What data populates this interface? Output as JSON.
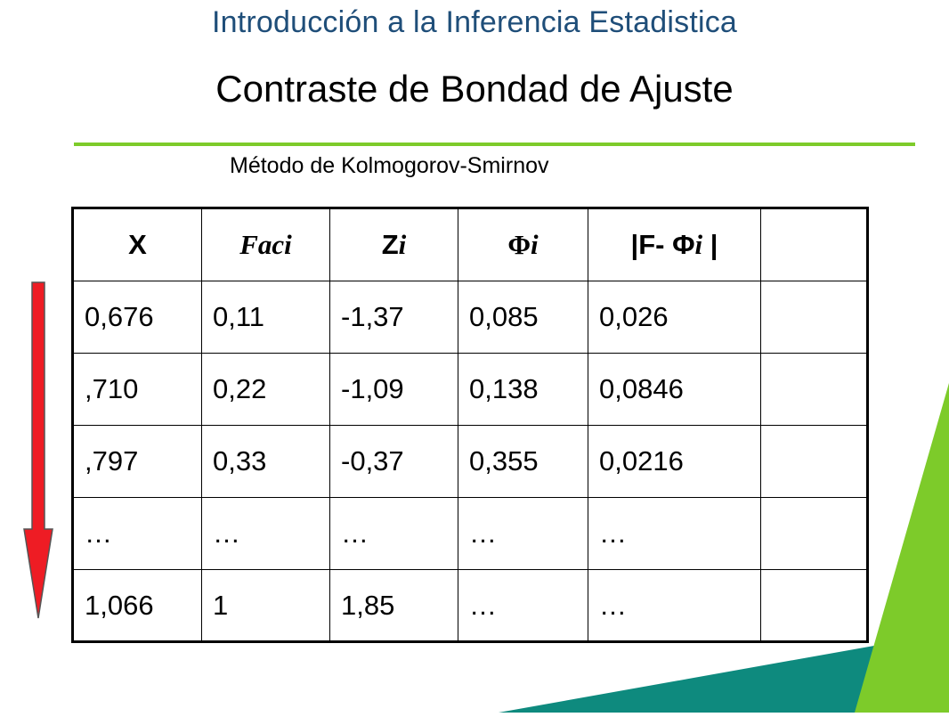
{
  "header": {
    "course_title": "Introducción a la Inferencia Estadistica",
    "slide_title": "Contraste de Bondad de Ajuste",
    "method": "Método de Kolmogorov-Smirnov"
  },
  "table": {
    "headers": [
      {
        "main": "X",
        "sub": ""
      },
      {
        "main": "Faci",
        "sub": ""
      },
      {
        "main": "Z",
        "sub": "i"
      },
      {
        "main": "Φ",
        "sub": "i"
      },
      {
        "main": "|F- Φ",
        "sub": "i",
        "tail": " |"
      },
      {
        "main": "",
        "sub": ""
      }
    ],
    "rows": [
      [
        "0,676",
        "0,11",
        "-1,37",
        "0,085",
        "0,026",
        ""
      ],
      [
        ",710",
        "0,22",
        "-1,09",
        "0,138",
        "0,0846",
        ""
      ],
      [
        ",797",
        "0,33",
        "-0,37",
        "0,355",
        "0,0216",
        ""
      ],
      [
        "…",
        "…",
        "…",
        "…",
        "…",
        ""
      ],
      [
        "1,066",
        "1",
        "1,85",
        "…",
        "…",
        ""
      ]
    ]
  },
  "colors": {
    "title_blue": "#1f4e79",
    "accent_green": "#7dcb2a",
    "arrow_red": "#ee1c24",
    "teal": "#0e8a7e"
  }
}
